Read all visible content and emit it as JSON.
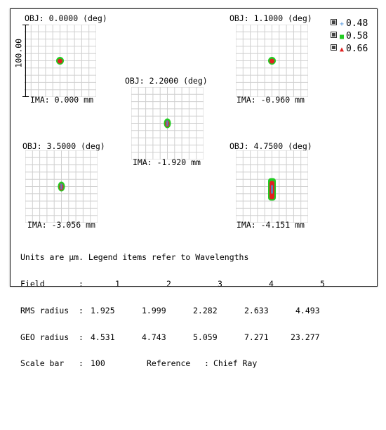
{
  "spots": [
    {
      "obj_label": "OBJ: 0.0000 (deg)",
      "ima_label": "IMA: 0.000 mm"
    },
    {
      "obj_label": "OBJ: 1.1000 (deg)",
      "ima_label": "IMA: -0.960 mm"
    },
    {
      "obj_label": "OBJ: 2.2000 (deg)",
      "ima_label": "IMA: -1.920 mm"
    },
    {
      "obj_label": "OBJ: 3.5000 (deg)",
      "ima_label": "IMA: -3.056 mm"
    },
    {
      "obj_label": "OBJ: 4.7500 (deg)",
      "ima_label": "IMA: -4.151 mm"
    }
  ],
  "scale_bar_label": "100.00",
  "legend": [
    {
      "value": "0.48",
      "marker": "+",
      "color": "#4a90d9",
      "icon": "plus-icon"
    },
    {
      "value": "0.58",
      "marker": "■",
      "color": "#22cc22",
      "icon": "square-icon"
    },
    {
      "value": "0.66",
      "marker": "▲",
      "color": "#e02020",
      "icon": "triangle-icon"
    }
  ],
  "info": {
    "units_line": "Units are µm. Legend items refer to Wavelengths",
    "field_label": "Field",
    "rms_label": "RMS radius",
    "geo_label": "GEO radius",
    "scale_label": "Scale bar",
    "sep": ":",
    "fields": [
      "1",
      "2",
      "3",
      "4",
      "5"
    ],
    "rms": [
      "1.925",
      "1.999",
      "2.282",
      "2.633",
      "4.493"
    ],
    "geo": [
      "4.531",
      "4.743",
      "5.059",
      "7.271",
      "23.277"
    ],
    "scale_value": "100",
    "reference_label": "Reference",
    "reference_value": "Chief Ray"
  }
}
